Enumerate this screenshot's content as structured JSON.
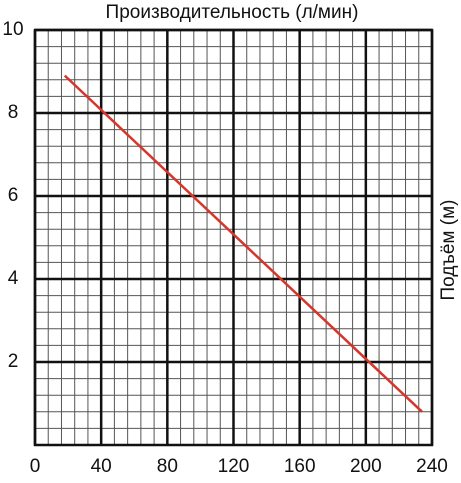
{
  "chart_data": {
    "type": "line",
    "title": "Производительность (л/мин)",
    "y_label": "Подъём (м)",
    "x": [
      18,
      234
    ],
    "series": [
      {
        "color": "#d8352a",
        "values": [
          8.9,
          0.8
        ]
      }
    ],
    "xlim": [
      0,
      240
    ],
    "xticks": [
      0,
      40,
      80,
      120,
      160,
      200,
      240
    ],
    "ylim": [
      0,
      10
    ],
    "yticks": [
      2,
      4,
      6,
      8,
      10
    ],
    "grid": true
  }
}
